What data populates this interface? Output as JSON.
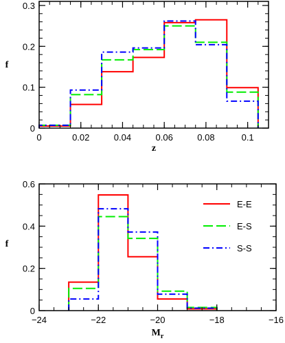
{
  "chart_data": [
    {
      "type": "line",
      "xlabel": "z",
      "ylabel": "f",
      "xlim": [
        0,
        0.11
      ],
      "ylim": [
        0,
        0.31
      ],
      "xticks": [
        0,
        0.02,
        0.04,
        0.06,
        0.08,
        0.1
      ],
      "xtick_labels": [
        "0",
        "0.02",
        "0.04",
        "0.06",
        "0.08",
        "0.1"
      ],
      "yticks": [
        0,
        0.1,
        0.2,
        0.3
      ],
      "ytick_labels": [
        "0",
        "0.1",
        "0.2",
        "0.3"
      ],
      "bin_edges": [
        0,
        0.015,
        0.03,
        0.045,
        0.06,
        0.075,
        0.09,
        0.105
      ],
      "series": [
        {
          "name": "E-E",
          "color": "#ff0000",
          "style": "solid",
          "values": [
            0.005,
            0.058,
            0.138,
            0.173,
            0.258,
            0.265,
            0.099
          ]
        },
        {
          "name": "E-S",
          "color": "#00ee00",
          "style": "long-dash",
          "values": [
            0.007,
            0.082,
            0.167,
            0.192,
            0.25,
            0.21,
            0.088
          ]
        },
        {
          "name": "S-S",
          "color": "#0000ff",
          "style": "dash-dot",
          "values": [
            0.007,
            0.093,
            0.186,
            0.196,
            0.262,
            0.204,
            0.066
          ]
        }
      ]
    },
    {
      "type": "line",
      "xlabel": "Mr",
      "xlabel_main": "M",
      "xlabel_sub": "r",
      "ylabel": "f",
      "xlim": [
        -24,
        -16
      ],
      "ylim": [
        0,
        0.6
      ],
      "xticks": [
        -24,
        -22,
        -20,
        -18,
        -16
      ],
      "xtick_labels": [
        "−24",
        "−22",
        "−20",
        "−18",
        "−16"
      ],
      "yticks": [
        0,
        0.2,
        0.4,
        0.6
      ],
      "ytick_labels": [
        "0",
        "0.2",
        "0.4",
        "0.6"
      ],
      "legend_position": "top-right",
      "bin_edges": [
        -23,
        -22,
        -21,
        -20,
        -19,
        -18
      ],
      "series": [
        {
          "name": "E-E",
          "color": "#ff0000",
          "style": "solid",
          "values": [
            0.135,
            0.548,
            0.255,
            0.055,
            0.008
          ]
        },
        {
          "name": "E-S",
          "color": "#00ee00",
          "style": "long-dash",
          "values": [
            0.105,
            0.445,
            0.342,
            0.092,
            0.015
          ]
        },
        {
          "name": "S-S",
          "color": "#0000ff",
          "style": "dash-dot",
          "values": [
            0.055,
            0.482,
            0.372,
            0.078,
            0.012
          ]
        }
      ]
    }
  ]
}
